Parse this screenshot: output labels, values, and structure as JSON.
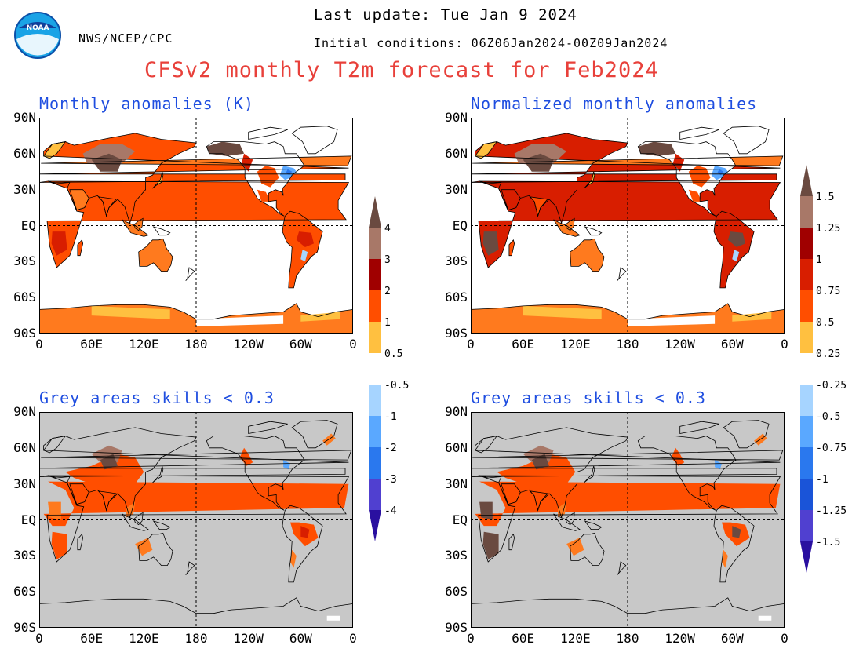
{
  "header": {
    "agency": "NWS/NCEP/CPC",
    "logo_text": "NOAA",
    "last_update": "Last update: Tue Jan 9 2024",
    "initial_conditions": "Initial conditions: 06Z06Jan2024-00Z09Jan2024",
    "title": "CFSv2 monthly T2m forecast for Feb2024"
  },
  "axes": {
    "lat_ticks": [
      "90N",
      "60N",
      "30N",
      "EQ",
      "30S",
      "60S",
      "90S"
    ],
    "lon_ticks": [
      "0",
      "60E",
      "120E",
      "180",
      "120W",
      "60W",
      "0"
    ]
  },
  "panels": [
    {
      "id": "top-left",
      "title": "Monthly anomalies (K)",
      "skill_mask": false
    },
    {
      "id": "top-right",
      "title": "Normalized monthly anomalies",
      "skill_mask": false
    },
    {
      "id": "bottom-left",
      "title": "Grey areas skills < 0.3",
      "skill_mask": true
    },
    {
      "id": "bottom-right",
      "title": "Grey areas skills < 0.3",
      "skill_mask": true
    }
  ],
  "colorbars": {
    "left": [
      "4",
      "3",
      "2",
      "1",
      "0.5",
      "-0.5",
      "-1",
      "-2",
      "-3",
      "-4"
    ],
    "right": [
      "1.5",
      "1.25",
      "1",
      "0.75",
      "0.5",
      "0.25",
      "-0.25",
      "-0.5",
      "-0.75",
      "-1",
      "-1.25",
      "-1.5"
    ]
  },
  "colors": {
    "mask_grey": "#c8c8c8",
    "title_red": "#e8403a",
    "panel_title_blue": "#1f4ee0",
    "warm": [
      "#ffc040",
      "#ff7a1e",
      "#ff4e00",
      "#d81e00",
      "#a00000",
      "#a87868",
      "#6a4a40"
    ],
    "cold": [
      "#a6d4ff",
      "#5aa8ff",
      "#2a78ee",
      "#1a54d8",
      "#5040d0",
      "#2a10a0"
    ]
  }
}
